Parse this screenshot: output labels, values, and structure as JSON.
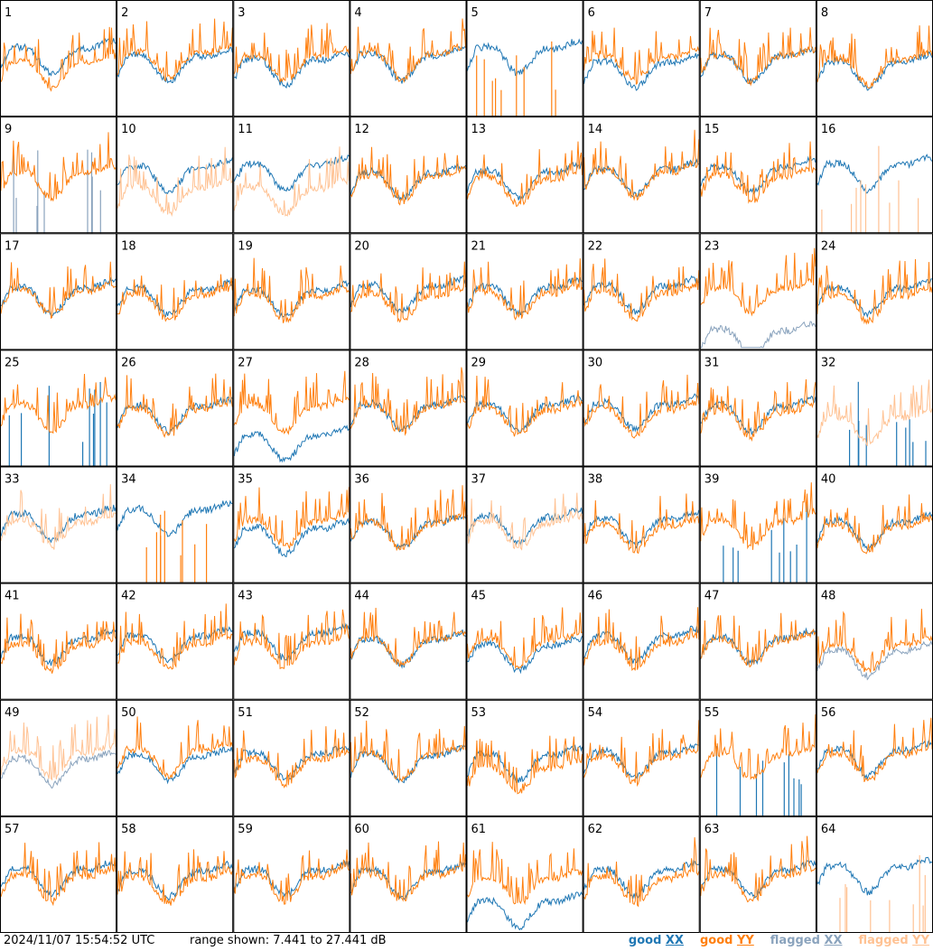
{
  "timestamp": "2024/11/07 15:54:52 UTC",
  "range_text": "range shown: 7.441 to 27.441 dB",
  "legend": [
    {
      "word": "good",
      "pol": "XX",
      "color": "#1f77b4"
    },
    {
      "word": "good",
      "pol": "YY",
      "color": "#ff7f0e"
    },
    {
      "word": "flagged",
      "pol": "XX",
      "color": "#8aa3bd"
    },
    {
      "word": "flagged",
      "pol": "YY",
      "color": "#ffc293"
    }
  ],
  "chart_data": {
    "type": "line",
    "layout": "8x8 small multiples, one panel per antenna input",
    "yrange_db": [
      7.441,
      27.441
    ],
    "series_names": [
      "good XX",
      "good YY",
      "flagged XX",
      "flagged YY"
    ],
    "colors": {
      "good_xx": "#1f77b4",
      "good_yy": "#ff7f0e",
      "flagged_xx": "#8aa3bd",
      "flagged_yy": "#ffc293"
    },
    "panels": [
      {
        "id": "1",
        "xx": "good",
        "yy": "good",
        "xx_level": 0.62,
        "yy_level": 0.5
      },
      {
        "id": "2",
        "xx": "good",
        "yy": "good",
        "xx_level": 0.55,
        "yy_level": 0.58
      },
      {
        "id": "3",
        "xx": "good",
        "yy": "good",
        "xx_level": 0.52,
        "yy_level": 0.55
      },
      {
        "id": "4",
        "xx": "good",
        "yy": "good",
        "xx_level": 0.56,
        "yy_level": 0.57
      },
      {
        "id": "5",
        "xx": "good",
        "yy": "good",
        "xx_level": 0.62,
        "yy_level": 0.0
      },
      {
        "id": "6",
        "xx": "good",
        "yy": "good",
        "xx_level": 0.5,
        "yy_level": 0.55
      },
      {
        "id": "7",
        "xx": "good",
        "yy": "good",
        "xx_level": 0.55,
        "yy_level": 0.55
      },
      {
        "id": "8",
        "xx": "good",
        "yy": "good",
        "xx_level": 0.5,
        "yy_level": 0.52
      },
      {
        "id": "9",
        "xx": "flagged",
        "yy": "good",
        "xx_level": 0.05,
        "yy_level": 0.55
      },
      {
        "id": "10",
        "xx": "good",
        "yy": "flagged",
        "xx_level": 0.6,
        "yy_level": 0.42
      },
      {
        "id": "11",
        "xx": "good",
        "yy": "flagged",
        "xx_level": 0.62,
        "yy_level": 0.42
      },
      {
        "id": "12",
        "xx": "good",
        "yy": "good",
        "xx_level": 0.55,
        "yy_level": 0.52
      },
      {
        "id": "13",
        "xx": "good",
        "yy": "good",
        "xx_level": 0.56,
        "yy_level": 0.5
      },
      {
        "id": "14",
        "xx": "good",
        "yy": "good",
        "xx_level": 0.58,
        "yy_level": 0.56
      },
      {
        "id": "15",
        "xx": "good",
        "yy": "good",
        "xx_level": 0.6,
        "yy_level": 0.52
      },
      {
        "id": "16",
        "xx": "good",
        "yy": "flagged",
        "xx_level": 0.62,
        "yy_level": 0.0
      },
      {
        "id": "17",
        "xx": "good",
        "yy": "good",
        "xx_level": 0.56,
        "yy_level": 0.54
      },
      {
        "id": "18",
        "xx": "good",
        "yy": "good",
        "xx_level": 0.55,
        "yy_level": 0.5
      },
      {
        "id": "19",
        "xx": "good",
        "yy": "good",
        "xx_level": 0.54,
        "yy_level": 0.5
      },
      {
        "id": "20",
        "xx": "good",
        "yy": "good",
        "xx_level": 0.58,
        "yy_level": 0.5
      },
      {
        "id": "21",
        "xx": "good",
        "yy": "good",
        "xx_level": 0.57,
        "yy_level": 0.52
      },
      {
        "id": "22",
        "xx": "good",
        "yy": "good",
        "xx_level": 0.58,
        "yy_level": 0.52
      },
      {
        "id": "23",
        "xx": "flagged",
        "yy": "good",
        "xx_level": 0.2,
        "yy_level": 0.56
      },
      {
        "id": "24",
        "xx": "good",
        "yy": "good",
        "xx_level": 0.56,
        "yy_level": 0.5
      },
      {
        "id": "25",
        "xx": "good",
        "yy": "good",
        "xx_level": 0.0,
        "yy_level": 0.56
      },
      {
        "id": "26",
        "xx": "good",
        "yy": "good",
        "xx_level": 0.55,
        "yy_level": 0.52
      },
      {
        "id": "27",
        "xx": "good",
        "yy": "good",
        "xx_level": 0.3,
        "yy_level": 0.55
      },
      {
        "id": "28",
        "xx": "good",
        "yy": "good",
        "xx_level": 0.56,
        "yy_level": 0.54
      },
      {
        "id": "29",
        "xx": "good",
        "yy": "good",
        "xx_level": 0.56,
        "yy_level": 0.52
      },
      {
        "id": "30",
        "xx": "good",
        "yy": "good",
        "xx_level": 0.57,
        "yy_level": 0.52
      },
      {
        "id": "31",
        "xx": "good",
        "yy": "good",
        "xx_level": 0.55,
        "yy_level": 0.5
      },
      {
        "id": "32",
        "xx": "good",
        "yy": "flagged",
        "xx_level": 0.0,
        "yy_level": 0.45
      },
      {
        "id": "33",
        "xx": "good",
        "yy": "flagged",
        "xx_level": 0.62,
        "yy_level": 0.56
      },
      {
        "id": "34",
        "xx": "good",
        "yy": "good",
        "xx_level": 0.66,
        "yy_level": 0.0
      },
      {
        "id": "35",
        "xx": "good",
        "yy": "good",
        "xx_level": 0.5,
        "yy_level": 0.56
      },
      {
        "id": "36",
        "xx": "good",
        "yy": "good",
        "xx_level": 0.55,
        "yy_level": 0.54
      },
      {
        "id": "37",
        "xx": "good",
        "yy": "flagged",
        "xx_level": 0.6,
        "yy_level": 0.55
      },
      {
        "id": "38",
        "xx": "good",
        "yy": "good",
        "xx_level": 0.58,
        "yy_level": 0.52
      },
      {
        "id": "39",
        "xx": "good",
        "yy": "good",
        "xx_level": 0.0,
        "yy_level": 0.56
      },
      {
        "id": "40",
        "xx": "good",
        "yy": "good",
        "xx_level": 0.56,
        "yy_level": 0.52
      },
      {
        "id": "41",
        "xx": "good",
        "yy": "good",
        "xx_level": 0.56,
        "yy_level": 0.5
      },
      {
        "id": "42",
        "xx": "good",
        "yy": "good",
        "xx_level": 0.58,
        "yy_level": 0.52
      },
      {
        "id": "43",
        "xx": "good",
        "yy": "good",
        "xx_level": 0.6,
        "yy_level": 0.52
      },
      {
        "id": "44",
        "xx": "good",
        "yy": "good",
        "xx_level": 0.55,
        "yy_level": 0.55
      },
      {
        "id": "45",
        "xx": "good",
        "yy": "good",
        "xx_level": 0.5,
        "yy_level": 0.54
      },
      {
        "id": "46",
        "xx": "good",
        "yy": "good",
        "xx_level": 0.58,
        "yy_level": 0.52
      },
      {
        "id": "47",
        "xx": "good",
        "yy": "good",
        "xx_level": 0.56,
        "yy_level": 0.54
      },
      {
        "id": "48",
        "xx": "flagged",
        "yy": "good",
        "xx_level": 0.45,
        "yy_level": 0.5
      },
      {
        "id": "49",
        "xx": "flagged",
        "yy": "flagged",
        "xx_level": 0.52,
        "yy_level": 0.58
      },
      {
        "id": "50",
        "xx": "good",
        "yy": "good",
        "xx_level": 0.55,
        "yy_level": 0.6
      },
      {
        "id": "51",
        "xx": "good",
        "yy": "good",
        "xx_level": 0.57,
        "yy_level": 0.52
      },
      {
        "id": "52",
        "xx": "good",
        "yy": "good",
        "xx_level": 0.56,
        "yy_level": 0.56
      },
      {
        "id": "53",
        "xx": "good",
        "yy": "good",
        "xx_level": 0.56,
        "yy_level": 0.45
      },
      {
        "id": "54",
        "xx": "good",
        "yy": "good",
        "xx_level": 0.58,
        "yy_level": 0.54
      },
      {
        "id": "55",
        "xx": "good",
        "yy": "good",
        "xx_level": 0.05,
        "yy_level": 0.56
      },
      {
        "id": "56",
        "xx": "good",
        "yy": "good",
        "xx_level": 0.6,
        "yy_level": 0.56
      },
      {
        "id": "57",
        "xx": "good",
        "yy": "good",
        "xx_level": 0.58,
        "yy_level": 0.52
      },
      {
        "id": "58",
        "xx": "good",
        "yy": "good",
        "xx_level": 0.56,
        "yy_level": 0.5
      },
      {
        "id": "59",
        "xx": "good",
        "yy": "good",
        "xx_level": 0.57,
        "yy_level": 0.52
      },
      {
        "id": "60",
        "xx": "good",
        "yy": "good",
        "xx_level": 0.56,
        "yy_level": 0.53
      },
      {
        "id": "61",
        "xx": "good",
        "yy": "good",
        "xx_level": 0.3,
        "yy_level": 0.5
      },
      {
        "id": "62",
        "xx": "good",
        "yy": "good",
        "xx_level": 0.57,
        "yy_level": 0.5
      },
      {
        "id": "63",
        "xx": "good",
        "yy": "good",
        "xx_level": 0.57,
        "yy_level": 0.53
      },
      {
        "id": "64",
        "xx": "good",
        "yy": "flagged",
        "xx_level": 0.6,
        "yy_level": 0.0
      }
    ]
  }
}
